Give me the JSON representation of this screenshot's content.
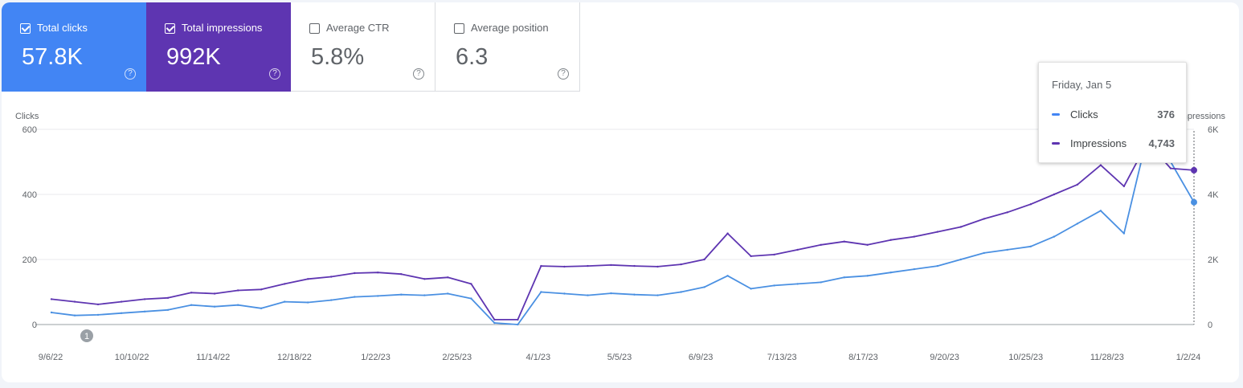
{
  "colors": {
    "clicks": "#4285f4",
    "impressions": "#5e35b1",
    "clicks_line": "#4a90e2",
    "impressions_line": "#5e35b1"
  },
  "metrics": [
    {
      "label": "Total clicks",
      "value": "57.8K",
      "checked": true,
      "bg": "#4285f4",
      "help_icon": "help-circle-icon"
    },
    {
      "label": "Total impressions",
      "value": "992K",
      "checked": true,
      "bg": "#5e35b1",
      "help_icon": "help-circle-icon"
    },
    {
      "label": "Average CTR",
      "value": "5.8%",
      "checked": false,
      "help_icon": "help-circle-icon"
    },
    {
      "label": "Average position",
      "value": "6.3",
      "checked": false,
      "help_icon": "help-circle-icon"
    }
  ],
  "tooltip": {
    "date": "Friday, Jan 5",
    "rows": [
      {
        "label": "Clicks",
        "value": "376"
      },
      {
        "label": "Impressions",
        "value": "4,743"
      }
    ]
  },
  "chart_data": {
    "type": "line",
    "left_axis": {
      "label": "Clicks",
      "ticks": [
        "600",
        "400",
        "200",
        "0"
      ],
      "ylim": [
        0,
        600
      ]
    },
    "right_axis": {
      "label": "Impressions",
      "ticks": [
        "6K",
        "4K",
        "2K",
        "0"
      ],
      "ylim": [
        0,
        6000
      ]
    },
    "x_tick_labels": [
      "9/6/22",
      "10/10/22",
      "11/14/22",
      "12/18/22",
      "1/22/23",
      "2/25/23",
      "4/1/23",
      "5/5/23",
      "6/9/23",
      "7/13/23",
      "8/17/23",
      "9/20/23",
      "10/25/23",
      "11/28/23",
      "1/2/24"
    ],
    "x_range": [
      "9/6/22",
      "1/5/24"
    ],
    "grid": true,
    "annotation": "1",
    "series": [
      {
        "name": "Clicks",
        "axis": "left",
        "values": [
          37,
          28,
          30,
          35,
          40,
          45,
          60,
          55,
          60,
          50,
          70,
          68,
          75,
          85,
          88,
          92,
          90,
          95,
          80,
          5,
          0,
          100,
          95,
          90,
          96,
          92,
          90,
          100,
          115,
          150,
          110,
          120,
          125,
          130,
          145,
          150,
          160,
          170,
          180,
          200,
          220,
          230,
          240,
          270,
          310,
          350,
          280,
          580,
          500,
          376
        ]
      },
      {
        "name": "Impressions",
        "axis": "right",
        "values": [
          780,
          700,
          620,
          700,
          780,
          820,
          980,
          950,
          1050,
          1080,
          1250,
          1400,
          1470,
          1580,
          1600,
          1550,
          1400,
          1450,
          1250,
          150,
          150,
          1800,
          1780,
          1800,
          1830,
          1800,
          1780,
          1850,
          2000,
          2800,
          2100,
          2150,
          2300,
          2450,
          2550,
          2450,
          2600,
          2700,
          2850,
          3000,
          3250,
          3450,
          3700,
          4000,
          4300,
          4900,
          4250,
          5600,
          4800,
          4743
        ]
      }
    ]
  }
}
